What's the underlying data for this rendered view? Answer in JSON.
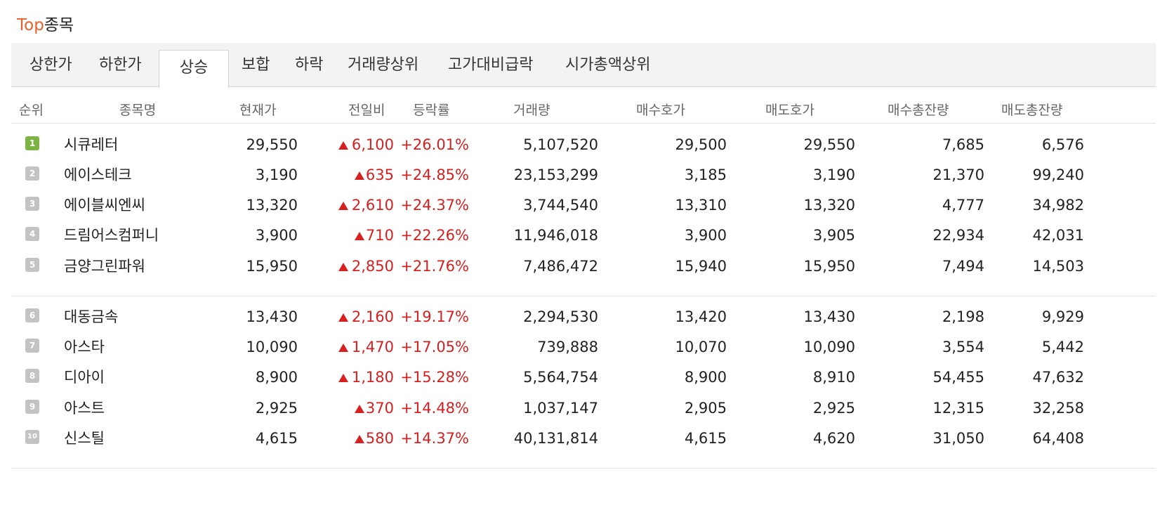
{
  "title": {
    "accent": "Top",
    "rest": "종목"
  },
  "tabs": [
    {
      "label": "상한가",
      "active": false
    },
    {
      "label": "하한가",
      "active": false
    },
    {
      "label": "상승",
      "active": true
    },
    {
      "label": "보합",
      "active": false
    },
    {
      "label": "하락",
      "active": false
    },
    {
      "label": "거래량상위",
      "active": false
    },
    {
      "label": "고가대비급락",
      "active": false
    },
    {
      "label": "시가총액상위",
      "active": false
    }
  ],
  "columns": [
    "순위",
    "종목명",
    "현재가",
    "전일비",
    "등락률",
    "거래량",
    "매수호가",
    "매도호가",
    "매수총잔량",
    "매도총잔량"
  ],
  "colors": {
    "accent": "#e8612c",
    "up": "#d71f1f",
    "rank_first": "#7cb342",
    "rank_other": "#c3c3c3"
  },
  "rows": [
    {
      "rank": "1",
      "name": "시큐레터",
      "price": "29,550",
      "change": "6,100",
      "rate": "+26.01%",
      "volume": "5,107,520",
      "bid": "29,500",
      "ask": "29,550",
      "bid_total": "7,685",
      "ask_total": "6,576"
    },
    {
      "rank": "2",
      "name": "에이스테크",
      "price": "3,190",
      "change": "635",
      "rate": "+24.85%",
      "volume": "23,153,299",
      "bid": "3,185",
      "ask": "3,190",
      "bid_total": "21,370",
      "ask_total": "99,240"
    },
    {
      "rank": "3",
      "name": "에이블씨엔씨",
      "price": "13,320",
      "change": "2,610",
      "rate": "+24.37%",
      "volume": "3,744,540",
      "bid": "13,310",
      "ask": "13,320",
      "bid_total": "4,777",
      "ask_total": "34,982"
    },
    {
      "rank": "4",
      "name": "드림어스컴퍼니",
      "price": "3,900",
      "change": "710",
      "rate": "+22.26%",
      "volume": "11,946,018",
      "bid": "3,900",
      "ask": "3,905",
      "bid_total": "22,934",
      "ask_total": "42,031"
    },
    {
      "rank": "5",
      "name": "금양그린파워",
      "price": "15,950",
      "change": "2,850",
      "rate": "+21.76%",
      "volume": "7,486,472",
      "bid": "15,940",
      "ask": "15,950",
      "bid_total": "7,494",
      "ask_total": "14,503"
    },
    {
      "rank": "6",
      "name": "대동금속",
      "price": "13,430",
      "change": "2,160",
      "rate": "+19.17%",
      "volume": "2,294,530",
      "bid": "13,420",
      "ask": "13,430",
      "bid_total": "2,198",
      "ask_total": "9,929"
    },
    {
      "rank": "7",
      "name": "아스타",
      "price": "10,090",
      "change": "1,470",
      "rate": "+17.05%",
      "volume": "739,888",
      "bid": "10,070",
      "ask": "10,090",
      "bid_total": "3,554",
      "ask_total": "5,442"
    },
    {
      "rank": "8",
      "name": "디아이",
      "price": "8,900",
      "change": "1,180",
      "rate": "+15.28%",
      "volume": "5,564,754",
      "bid": "8,900",
      "ask": "8,910",
      "bid_total": "54,455",
      "ask_total": "47,632"
    },
    {
      "rank": "9",
      "name": "아스트",
      "price": "2,925",
      "change": "370",
      "rate": "+14.48%",
      "volume": "1,037,147",
      "bid": "2,905",
      "ask": "2,925",
      "bid_total": "12,315",
      "ask_total": "32,258"
    },
    {
      "rank": "10",
      "name": "신스틸",
      "price": "4,615",
      "change": "580",
      "rate": "+14.37%",
      "volume": "40,131,814",
      "bid": "4,615",
      "ask": "4,620",
      "bid_total": "31,050",
      "ask_total": "64,408"
    }
  ]
}
